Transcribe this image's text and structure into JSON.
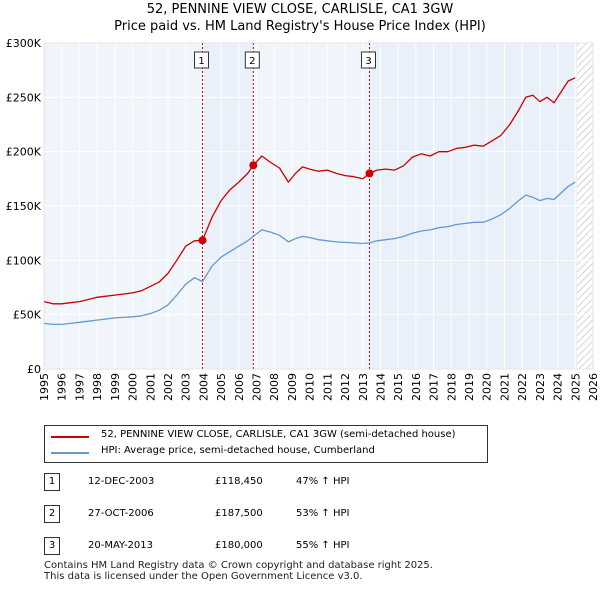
{
  "title": {
    "line1": "52, PENNINE VIEW CLOSE, CARLISLE, CA1 3GW",
    "line2": "Price paid vs. HM Land Registry's House Price Index (HPI)"
  },
  "colors": {
    "property": "#cc0000",
    "hpi": "#6699cc",
    "shade": "#eaf0fa",
    "grid": "#ffffff",
    "plot_bg": "#f0f4fb",
    "marker_line": "#cc0000"
  },
  "chart_data": {
    "type": "line",
    "title": "Price paid vs. HM Land Registry's House Price Index (HPI)",
    "xlabel": "",
    "ylabel": "",
    "xlim": [
      1995,
      2026
    ],
    "ylim": [
      0,
      300000
    ],
    "y_ticks": [
      0,
      50000,
      100000,
      150000,
      200000,
      250000,
      300000
    ],
    "y_tick_labels": [
      "£0",
      "£50K",
      "£100K",
      "£150K",
      "£200K",
      "£250K",
      "£300K"
    ],
    "x_ticks": [
      1995,
      1996,
      1997,
      1998,
      1999,
      2000,
      2001,
      2002,
      2003,
      2004,
      2005,
      2006,
      2007,
      2008,
      2009,
      2010,
      2011,
      2012,
      2013,
      2014,
      2015,
      2016,
      2017,
      2018,
      2019,
      2020,
      2021,
      2022,
      2023,
      2024,
      2025,
      2026
    ],
    "x_tick_labels": [
      "1995",
      "1996",
      "1997",
      "1998",
      "1999",
      "2000",
      "2001",
      "2002",
      "2003",
      "2004",
      "2005",
      "2006",
      "2007",
      "2008",
      "2009",
      "2010",
      "2011",
      "2012",
      "2013",
      "2014",
      "2015",
      "2016",
      "2017",
      "2018",
      "2019",
      "2020",
      "2021",
      "2022",
      "2023",
      "2024",
      "2025",
      "2026"
    ],
    "shaded_ranges": [
      [
        2003.95,
        2006.82
      ],
      [
        2013.38,
        2025.1
      ]
    ],
    "hatched_range": [
      2025.1,
      2026
    ],
    "series": [
      {
        "name": "52, PENNINE VIEW CLOSE, CARLISLE, CA1 3GW (semi-detached house)",
        "color": "#cc0000",
        "x": [
          1995.0,
          1995.5,
          1996.0,
          1996.5,
          1997.0,
          1997.5,
          1998.0,
          1998.5,
          1999.0,
          1999.5,
          2000.0,
          2000.5,
          2001.0,
          2001.5,
          2002.0,
          2002.5,
          2003.0,
          2003.5,
          2003.95,
          2004.5,
          2005.0,
          2005.5,
          2006.0,
          2006.5,
          2006.82,
          2007.3,
          2007.8,
          2008.3,
          2008.8,
          2009.2,
          2009.6,
          2010.0,
          2010.5,
          2011.0,
          2011.5,
          2012.0,
          2012.5,
          2013.0,
          2013.38,
          2013.8,
          2014.3,
          2014.8,
          2015.3,
          2015.8,
          2016.3,
          2016.8,
          2017.3,
          2017.8,
          2018.3,
          2018.8,
          2019.3,
          2019.8,
          2020.3,
          2020.8,
          2021.3,
          2021.8,
          2022.2,
          2022.6,
          2023.0,
          2023.4,
          2023.8,
          2024.2,
          2024.6,
          2025.0
        ],
        "values": [
          62000,
          60000,
          60000,
          61000,
          62000,
          64000,
          66000,
          67000,
          68000,
          69000,
          70000,
          72000,
          76000,
          80000,
          88000,
          100000,
          113000,
          118000,
          118450,
          140000,
          155000,
          165000,
          172000,
          180000,
          187500,
          196000,
          190000,
          185000,
          172000,
          180000,
          186000,
          184000,
          182000,
          183000,
          180000,
          178000,
          177000,
          175000,
          180000,
          183000,
          184000,
          183000,
          187000,
          195000,
          198000,
          196000,
          200000,
          200000,
          203000,
          204000,
          206000,
          205000,
          210000,
          215000,
          225000,
          238000,
          250000,
          252000,
          246000,
          250000,
          245000,
          255000,
          265000,
          268000
        ]
      },
      {
        "name": "HPI: Average price, semi-detached house, Cumberland",
        "color": "#6699cc",
        "x": [
          1995.0,
          1995.5,
          1996.0,
          1996.5,
          1997.0,
          1997.5,
          1998.0,
          1998.5,
          1999.0,
          1999.5,
          2000.0,
          2000.5,
          2001.0,
          2001.5,
          2002.0,
          2002.5,
          2003.0,
          2003.5,
          2003.95,
          2004.5,
          2005.0,
          2005.5,
          2006.0,
          2006.5,
          2006.82,
          2007.3,
          2007.8,
          2008.3,
          2008.8,
          2009.2,
          2009.6,
          2010.0,
          2010.5,
          2011.0,
          2011.5,
          2012.0,
          2012.5,
          2013.0,
          2013.38,
          2013.8,
          2014.3,
          2014.8,
          2015.3,
          2015.8,
          2016.3,
          2016.8,
          2017.3,
          2017.8,
          2018.3,
          2018.8,
          2019.3,
          2019.8,
          2020.3,
          2020.8,
          2021.3,
          2021.8,
          2022.2,
          2022.6,
          2023.0,
          2023.4,
          2023.8,
          2024.2,
          2024.6,
          2025.0
        ],
        "values": [
          42000,
          41000,
          41000,
          42000,
          43000,
          44000,
          45000,
          46000,
          47000,
          47500,
          48000,
          49000,
          51000,
          54000,
          59000,
          68000,
          78000,
          84000,
          80500,
          95000,
          103000,
          108000,
          113000,
          118000,
          122000,
          128000,
          126000,
          123000,
          117000,
          120000,
          122000,
          121000,
          119000,
          118000,
          117000,
          116500,
          116000,
          115500,
          116000,
          118000,
          119000,
          120000,
          122000,
          125000,
          127000,
          128000,
          130000,
          131000,
          133000,
          134000,
          135000,
          135000,
          138000,
          142000,
          148000,
          155000,
          160000,
          158000,
          155000,
          157000,
          156000,
          162000,
          168000,
          172000
        ]
      }
    ],
    "sales": [
      {
        "id": "1",
        "year": 2003.95,
        "price": 118450
      },
      {
        "id": "2",
        "year": 2006.82,
        "price": 187500
      },
      {
        "id": "3",
        "year": 2013.38,
        "price": 180000
      }
    ]
  },
  "legend": {
    "property_label": "52, PENNINE VIEW CLOSE, CARLISLE, CA1 3GW (semi-detached house)",
    "hpi_label": "HPI: Average price, semi-detached house, Cumberland"
  },
  "sales_table": [
    {
      "num": "1",
      "date": "12-DEC-2003",
      "price": "£118,450",
      "hpi": "47% ↑ HPI"
    },
    {
      "num": "2",
      "date": "27-OCT-2006",
      "price": "£187,500",
      "hpi": "53% ↑ HPI"
    },
    {
      "num": "3",
      "date": "20-MAY-2013",
      "price": "£180,000",
      "hpi": "55% ↑ HPI"
    }
  ],
  "footer": {
    "line1": "Contains HM Land Registry data © Crown copyright and database right 2025.",
    "line2": "This data is licensed under the Open Government Licence v3.0."
  }
}
